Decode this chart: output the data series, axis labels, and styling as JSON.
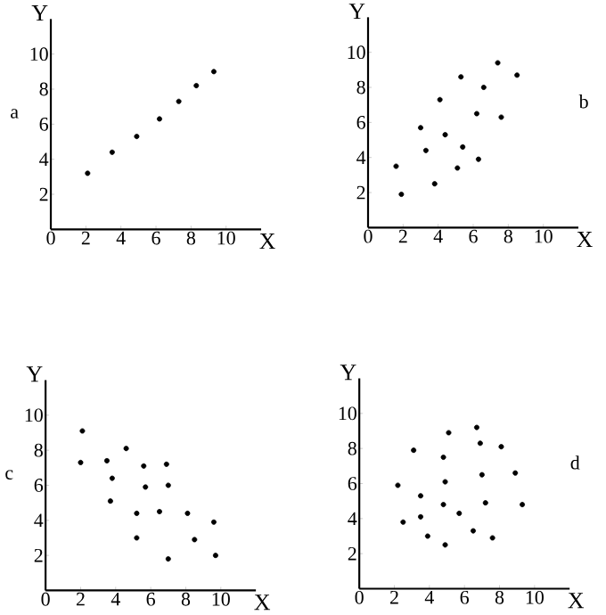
{
  "chart_data": [
    {
      "type": "scatter",
      "xlabel": "X",
      "ylabel": "Y",
      "annotations": [
        "a"
      ],
      "color": "#000000",
      "xlim": [
        0,
        12
      ],
      "ylim": [
        0,
        12
      ],
      "xticks": [
        0,
        2,
        4,
        6,
        8,
        10
      ],
      "yticks": [
        2,
        4,
        6,
        8,
        10
      ],
      "x": [
        2.1,
        3.5,
        4.9,
        6.2,
        7.3,
        8.3,
        9.3
      ],
      "values": [
        3.2,
        4.4,
        5.3,
        6.3,
        7.3,
        8.2,
        9.0
      ]
    },
    {
      "type": "scatter",
      "xlabel": "X",
      "ylabel": "Y",
      "annotations": [
        "b"
      ],
      "color": "#000000",
      "xlim": [
        0,
        12
      ],
      "ylim": [
        0,
        12
      ],
      "xticks": [
        0,
        2,
        4,
        6,
        8,
        10
      ],
      "yticks": [
        2,
        4,
        6,
        8,
        10
      ],
      "x": [
        1.6,
        1.9,
        3.0,
        3.3,
        3.8,
        4.1,
        4.4,
        5.3,
        5.4,
        5.1,
        6.2,
        6.3,
        6.6,
        7.4,
        7.6,
        8.5
      ],
      "values": [
        3.5,
        1.9,
        5.7,
        4.4,
        2.5,
        7.3,
        5.3,
        8.6,
        4.6,
        3.4,
        6.5,
        3.9,
        8.0,
        9.4,
        6.3,
        8.7
      ]
    },
    {
      "type": "scatter",
      "xlabel": "X",
      "ylabel": "Y",
      "annotations": [
        "c"
      ],
      "color": "#000000",
      "xlim": [
        0,
        12
      ],
      "ylim": [
        0,
        12
      ],
      "xticks": [
        0,
        2,
        4,
        6,
        8,
        10
      ],
      "yticks": [
        2,
        4,
        6,
        8,
        10
      ],
      "x": [
        2.1,
        2.0,
        3.5,
        3.8,
        3.7,
        4.6,
        5.6,
        5.7,
        5.2,
        5.2,
        6.9,
        7.0,
        6.5,
        7.0,
        8.1,
        8.5,
        9.6,
        9.7
      ],
      "values": [
        9.1,
        7.3,
        7.4,
        6.4,
        5.1,
        8.1,
        7.1,
        5.9,
        4.4,
        3.0,
        7.2,
        6.0,
        4.5,
        1.8,
        4.4,
        2.9,
        3.9,
        2.0
      ]
    },
    {
      "type": "scatter",
      "xlabel": "X",
      "ylabel": "Y",
      "annotations": [
        "d"
      ],
      "color": "#000000",
      "xlim": [
        0,
        12
      ],
      "ylim": [
        0,
        12
      ],
      "xticks": [
        0,
        2,
        4,
        6,
        8,
        10
      ],
      "yticks": [
        2,
        4,
        6,
        8,
        10
      ],
      "x": [
        2.2,
        2.5,
        3.1,
        3.5,
        3.5,
        3.9,
        4.8,
        4.9,
        4.8,
        4.9,
        5.1,
        5.7,
        6.7,
        6.9,
        7.0,
        6.5,
        7.2,
        7.6,
        8.1,
        8.9,
        9.3
      ],
      "values": [
        5.9,
        3.8,
        7.9,
        5.3,
        4.1,
        3.0,
        7.5,
        6.1,
        4.8,
        2.5,
        8.9,
        4.3,
        9.2,
        8.3,
        6.5,
        3.3,
        4.9,
        2.9,
        8.1,
        6.6,
        4.8
      ]
    }
  ]
}
